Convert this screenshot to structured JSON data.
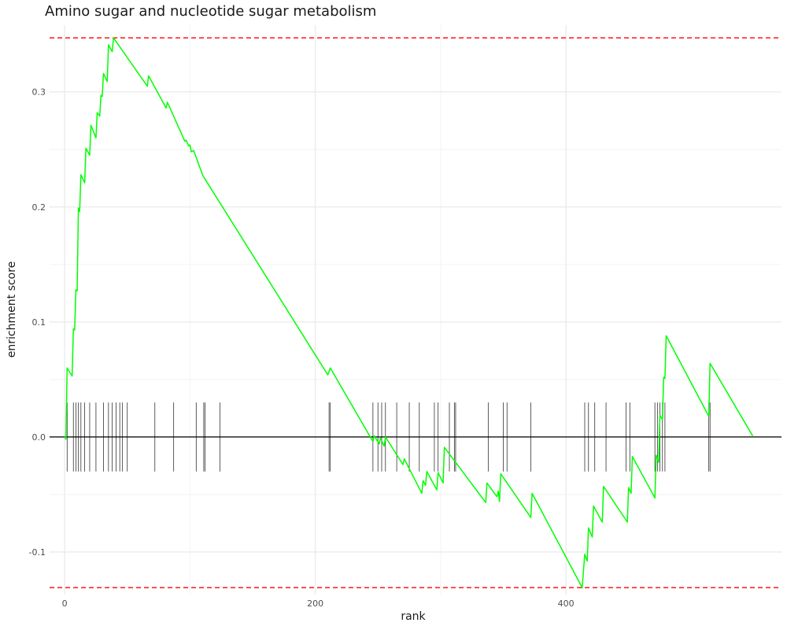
{
  "chart_data": {
    "type": "line",
    "title": "Amino sugar and nucleotide sugar metabolism",
    "xlabel": "rank",
    "ylabel": "enrichment score",
    "xlim": [
      -12,
      572
    ],
    "ylim": [
      -0.137,
      0.358
    ],
    "x_ticks": [
      {
        "value": 0,
        "label": "0"
      },
      {
        "value": 200,
        "label": "200"
      },
      {
        "value": 400,
        "label": "400"
      }
    ],
    "y_ticks": [
      {
        "value": -0.1,
        "label": "-0.1"
      },
      {
        "value": 0.0,
        "label": "0.0"
      },
      {
        "value": 0.1,
        "label": "0.1"
      },
      {
        "value": 0.2,
        "label": "0.2"
      },
      {
        "value": 0.3,
        "label": "0.3"
      }
    ],
    "grid": true,
    "colors": {
      "curve": "#00ff00",
      "threshold": "#ff0000",
      "zero_line": "#000000",
      "rug": "#333333",
      "grid": "#ebebeb"
    },
    "thresholds": [
      0.347,
      -0.131
    ],
    "hit_ranks": [
      2,
      7,
      9,
      11,
      13,
      16,
      20,
      25,
      31,
      35,
      38,
      41,
      44,
      46,
      50,
      72,
      87,
      105,
      111,
      112,
      124,
      211,
      212,
      246,
      250,
      253,
      256,
      265,
      275,
      283,
      295,
      298,
      307,
      311,
      312,
      338,
      350,
      353,
      372,
      415,
      418,
      423,
      432,
      448,
      451,
      471,
      473,
      475,
      477,
      479,
      514,
      515
    ],
    "series": [
      {
        "values": [
          [
            0,
            0.0
          ],
          [
            1,
            -0.002
          ],
          [
            2,
            0.06
          ],
          [
            6,
            0.053
          ],
          [
            7,
            0.094
          ],
          [
            8,
            0.093
          ],
          [
            9,
            0.128
          ],
          [
            10,
            0.127
          ],
          [
            11,
            0.199
          ],
          [
            12,
            0.196
          ],
          [
            13,
            0.228
          ],
          [
            16,
            0.221
          ],
          [
            17,
            0.251
          ],
          [
            20,
            0.245
          ],
          [
            21,
            0.271
          ],
          [
            25,
            0.26
          ],
          [
            26,
            0.282
          ],
          [
            28,
            0.279
          ],
          [
            29,
            0.297
          ],
          [
            30,
            0.296
          ],
          [
            31,
            0.316
          ],
          [
            34,
            0.309
          ],
          [
            35,
            0.341
          ],
          [
            38,
            0.335
          ],
          [
            39,
            0.347
          ],
          [
            66,
            0.305
          ],
          [
            67,
            0.314
          ],
          [
            81,
            0.286
          ],
          [
            82,
            0.291
          ],
          [
            96,
            0.257
          ],
          [
            97,
            0.258
          ],
          [
            99,
            0.253
          ],
          [
            100,
            0.254
          ],
          [
            101,
            0.248
          ],
          [
            103,
            0.249
          ],
          [
            110,
            0.228
          ],
          [
            111,
            0.226
          ],
          [
            210,
            0.054
          ],
          [
            212,
            0.06
          ],
          [
            246,
            -0.004
          ],
          [
            247,
            0.001
          ],
          [
            251,
            -0.006
          ],
          [
            252,
            -0.001
          ],
          [
            255,
            -0.008
          ],
          [
            256,
            0.0
          ],
          [
            270,
            -0.024
          ],
          [
            271,
            -0.019
          ],
          [
            285,
            -0.049
          ],
          [
            286,
            -0.038
          ],
          [
            288,
            -0.042
          ],
          [
            289,
            -0.03
          ],
          [
            297,
            -0.046
          ],
          [
            298,
            -0.031
          ],
          [
            302,
            -0.04
          ],
          [
            303,
            -0.009
          ],
          [
            336,
            -0.057
          ],
          [
            337,
            -0.04
          ],
          [
            345,
            -0.052
          ],
          [
            346,
            -0.047
          ],
          [
            347,
            -0.056
          ],
          [
            348,
            -0.032
          ],
          [
            372,
            -0.07
          ],
          [
            373,
            -0.049
          ],
          [
            413,
            -0.131
          ],
          [
            415,
            -0.102
          ],
          [
            417,
            -0.108
          ],
          [
            418,
            -0.079
          ],
          [
            421,
            -0.087
          ],
          [
            422,
            -0.06
          ],
          [
            429,
            -0.074
          ],
          [
            430,
            -0.043
          ],
          [
            449,
            -0.074
          ],
          [
            450,
            -0.044
          ],
          [
            452,
            -0.049
          ],
          [
            453,
            -0.017
          ],
          [
            471,
            -0.053
          ],
          [
            472,
            -0.016
          ],
          [
            474,
            -0.022
          ],
          [
            475,
            0.019
          ],
          [
            477,
            0.015
          ],
          [
            478,
            0.052
          ],
          [
            479,
            0.051
          ],
          [
            480,
            0.088
          ],
          [
            514,
            0.018
          ],
          [
            515,
            0.064
          ],
          [
            549,
            0.001
          ]
        ]
      }
    ]
  }
}
